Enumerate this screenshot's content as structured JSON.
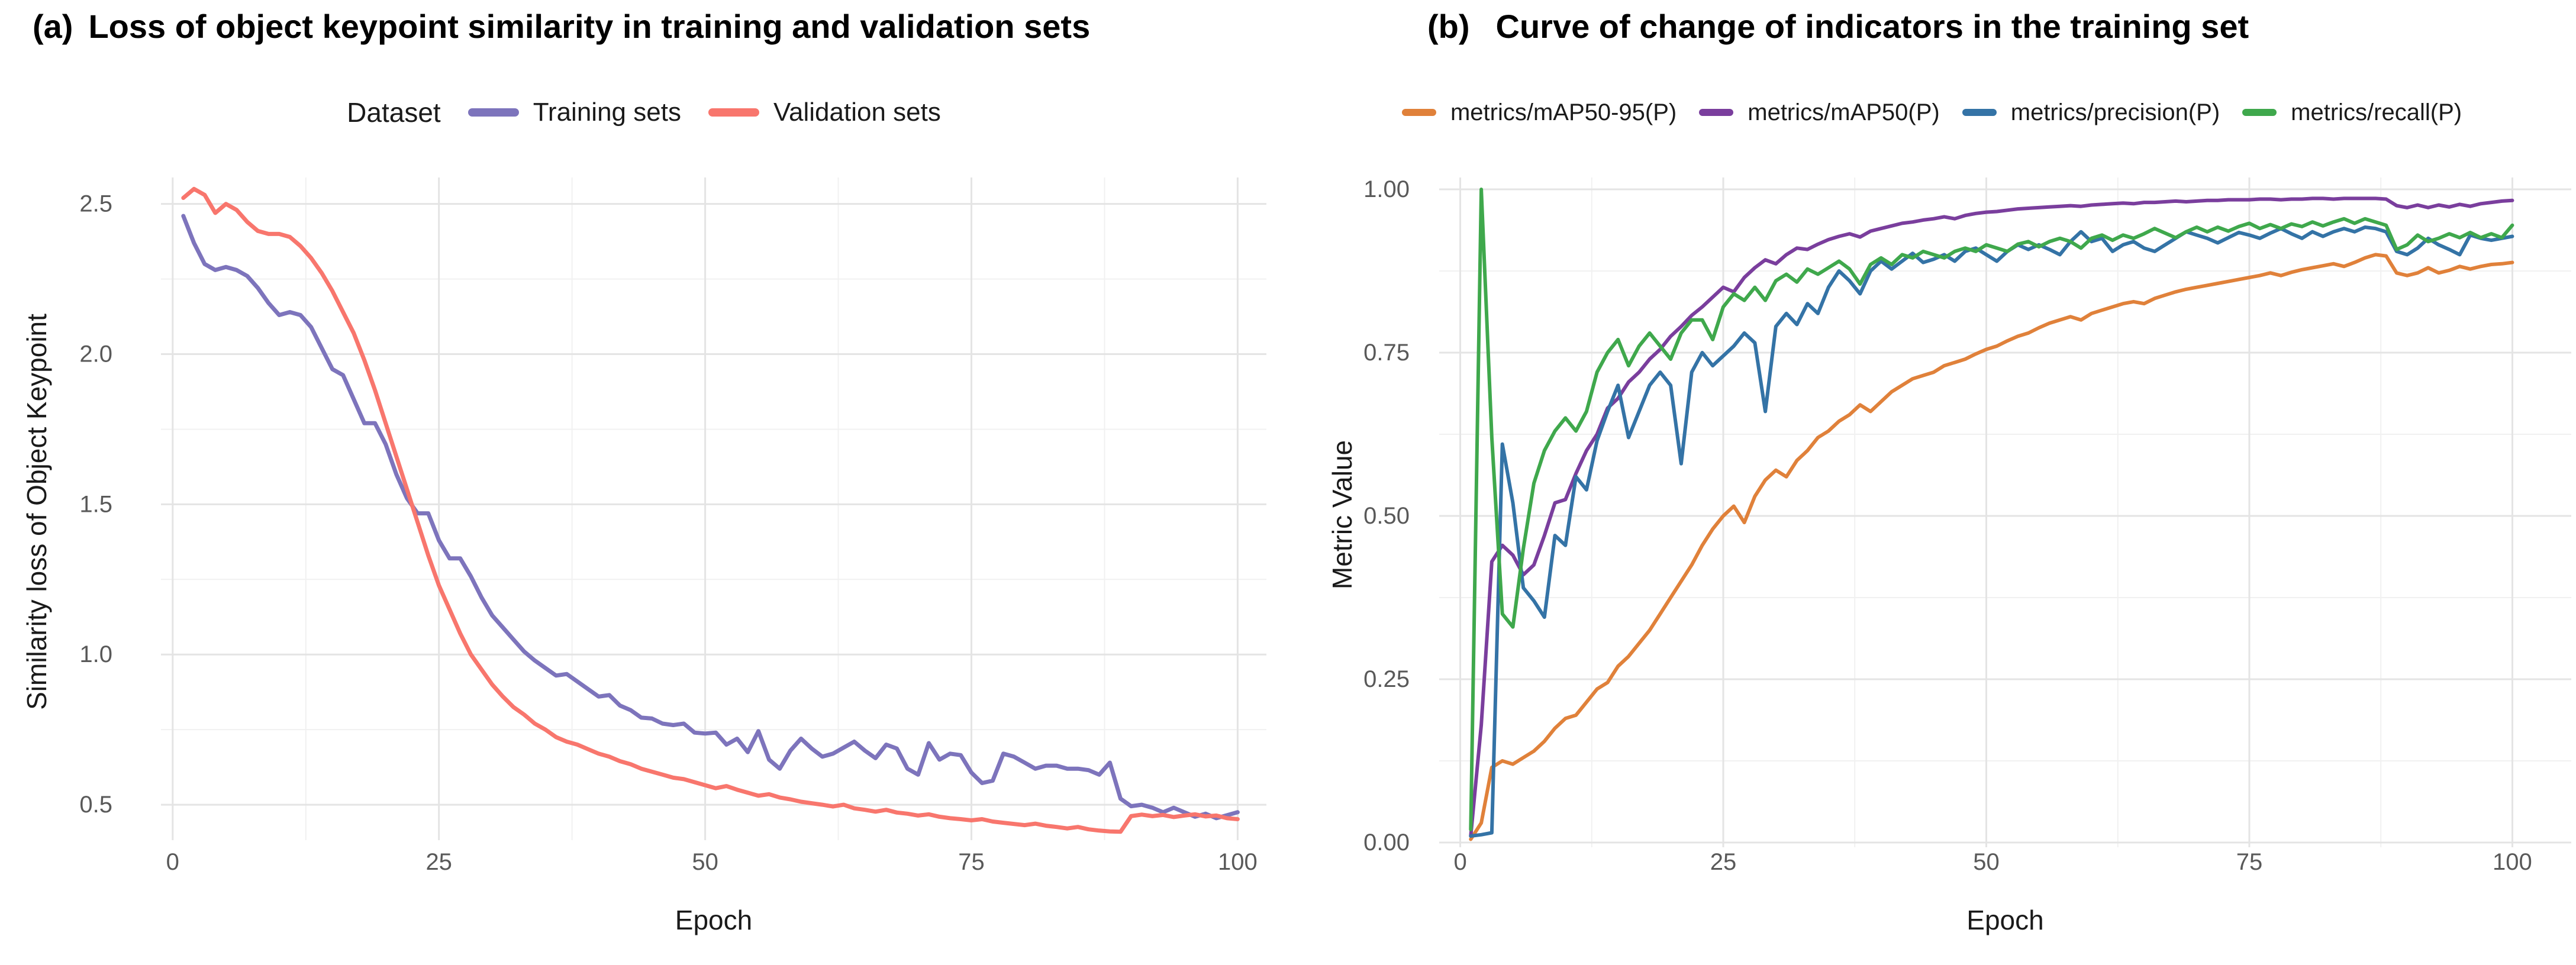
{
  "figure": {
    "background": "#ffffff"
  },
  "panels": [
    {
      "tag": "(a)",
      "title": "Loss of object keypoint similarity in training and validation sets",
      "legend_title": "Dataset",
      "xlabel": "Epoch",
      "ylabel": "Similarity loss of Object Keypoint"
    },
    {
      "tag": "(b)",
      "title": "Curve of change of indicators in the training set",
      "xlabel": "Epoch",
      "ylabel": "Metric Value"
    }
  ],
  "chart_data": [
    {
      "type": "line",
      "title": "(a) Loss of object keypoint similarity in training and validation sets",
      "xlabel": "Epoch",
      "ylabel": "Similarity loss of Object Keypoint",
      "legend_position": "top-center",
      "legend_title": "Dataset",
      "grid": true,
      "grid_major": "#E4E4E4",
      "grid_minor": "#F1F1F1",
      "tick_color": "#595959",
      "line_width": 7,
      "xlim": [
        -1.1,
        102.7
      ],
      "ylim": [
        0.382,
        2.588
      ],
      "x_ticks": {
        "values": [
          0,
          25,
          50,
          75,
          100
        ],
        "labels": [
          "0",
          "25",
          "50",
          "75",
          "100"
        ]
      },
      "x_minor": [
        12.5,
        37.5,
        62.5,
        87.5
      ],
      "y_ticks": {
        "values": [
          2.5,
          2.0,
          1.5,
          1.0,
          0.5
        ],
        "labels": [
          "2.5",
          "2.0",
          "1.5",
          "1.0",
          "0.5"
        ]
      },
      "y_minor": [
        2.25,
        1.75,
        1.25,
        0.75
      ],
      "series": [
        {
          "name": "Training sets",
          "color": "#7D74BC",
          "x_start": 1,
          "x_step": 1,
          "values": [
            2.46,
            2.37,
            2.3,
            2.28,
            2.29,
            2.28,
            2.26,
            2.22,
            2.17,
            2.13,
            2.14,
            2.13,
            2.09,
            2.02,
            1.95,
            1.93,
            1.85,
            1.77,
            1.77,
            1.7,
            1.6,
            1.52,
            1.47,
            1.47,
            1.38,
            1.32,
            1.32,
            1.26,
            1.19,
            1.13,
            1.09,
            1.05,
            1.01,
            0.98,
            0.955,
            0.93,
            0.935,
            0.91,
            0.885,
            0.86,
            0.865,
            0.83,
            0.815,
            0.79,
            0.787,
            0.77,
            0.765,
            0.77,
            0.74,
            0.737,
            0.74,
            0.7,
            0.72,
            0.675,
            0.745,
            0.65,
            0.62,
            0.68,
            0.72,
            0.687,
            0.66,
            0.67,
            0.69,
            0.71,
            0.68,
            0.655,
            0.7,
            0.687,
            0.62,
            0.6,
            0.705,
            0.65,
            0.67,
            0.665,
            0.607,
            0.572,
            0.58,
            0.67,
            0.66,
            0.64,
            0.62,
            0.63,
            0.63,
            0.62,
            0.62,
            0.615,
            0.6,
            0.64,
            0.52,
            0.495,
            0.5,
            0.49,
            0.475,
            0.49,
            0.475,
            0.46,
            0.47,
            0.455,
            0.465,
            0.475
          ]
        },
        {
          "name": "Validation sets",
          "color": "#F8766D",
          "x_start": 1,
          "x_step": 1,
          "values": [
            2.52,
            2.55,
            2.53,
            2.47,
            2.5,
            2.48,
            2.44,
            2.41,
            2.4,
            2.4,
            2.39,
            2.36,
            2.32,
            2.27,
            2.21,
            2.14,
            2.07,
            1.98,
            1.88,
            1.77,
            1.66,
            1.55,
            1.44,
            1.33,
            1.23,
            1.15,
            1.07,
            1.0,
            0.95,
            0.9,
            0.86,
            0.825,
            0.8,
            0.77,
            0.75,
            0.725,
            0.71,
            0.7,
            0.685,
            0.67,
            0.66,
            0.645,
            0.635,
            0.62,
            0.61,
            0.6,
            0.59,
            0.585,
            0.575,
            0.565,
            0.555,
            0.562,
            0.55,
            0.54,
            0.53,
            0.535,
            0.524,
            0.518,
            0.51,
            0.505,
            0.5,
            0.494,
            0.5,
            0.488,
            0.483,
            0.477,
            0.483,
            0.474,
            0.47,
            0.464,
            0.468,
            0.46,
            0.455,
            0.452,
            0.448,
            0.452,
            0.444,
            0.44,
            0.436,
            0.432,
            0.437,
            0.43,
            0.426,
            0.421,
            0.426,
            0.418,
            0.414,
            0.411,
            0.41,
            0.462,
            0.467,
            0.462,
            0.466,
            0.459,
            0.464,
            0.468,
            0.461,
            0.464,
            0.455,
            0.452
          ]
        }
      ]
    },
    {
      "type": "line",
      "title": "(b) Curve of change of indicators in the training set",
      "xlabel": "Epoch",
      "ylabel": "Metric Value",
      "legend_position": "top-center",
      "grid": true,
      "grid_major": "#E4E4E4",
      "grid_minor": "#F1F1F1",
      "tick_color": "#595959",
      "line_width": 6,
      "xlim": [
        -2.0,
        105.6
      ],
      "ylim": [
        -0.0072,
        1.0181
      ],
      "x_ticks": {
        "values": [
          0,
          25,
          50,
          75,
          100
        ],
        "labels": [
          "0",
          "25",
          "50",
          "75",
          "100"
        ]
      },
      "x_minor": [
        12.5,
        37.5,
        62.5,
        87.5
      ],
      "y_ticks": {
        "values": [
          1.0,
          0.75,
          0.5,
          0.25,
          0.0
        ],
        "labels": [
          "1.00",
          "0.75",
          "0.50",
          "0.25",
          "0.00"
        ]
      },
      "y_minor": [
        0.875,
        0.625,
        0.375,
        0.125
      ],
      "series": [
        {
          "name": "metrics/mAP50-95(P)",
          "color": "#E0813A",
          "x_start": 1,
          "x_step": 1,
          "values": [
            0.005,
            0.03,
            0.115,
            0.125,
            0.12,
            0.13,
            0.14,
            0.155,
            0.175,
            0.19,
            0.195,
            0.215,
            0.235,
            0.245,
            0.27,
            0.285,
            0.305,
            0.325,
            0.35,
            0.375,
            0.4,
            0.425,
            0.455,
            0.48,
            0.5,
            0.515,
            0.49,
            0.53,
            0.555,
            0.57,
            0.56,
            0.585,
            0.6,
            0.62,
            0.63,
            0.645,
            0.655,
            0.67,
            0.66,
            0.675,
            0.69,
            0.7,
            0.71,
            0.715,
            0.72,
            0.73,
            0.735,
            0.74,
            0.748,
            0.755,
            0.76,
            0.768,
            0.775,
            0.78,
            0.788,
            0.795,
            0.8,
            0.805,
            0.8,
            0.81,
            0.815,
            0.82,
            0.825,
            0.828,
            0.825,
            0.833,
            0.838,
            0.843,
            0.847,
            0.85,
            0.853,
            0.856,
            0.859,
            0.862,
            0.865,
            0.868,
            0.872,
            0.868,
            0.873,
            0.877,
            0.88,
            0.883,
            0.886,
            0.882,
            0.888,
            0.895,
            0.9,
            0.898,
            0.872,
            0.868,
            0.872,
            0.88,
            0.872,
            0.876,
            0.882,
            0.878,
            0.882,
            0.885,
            0.886,
            0.888
          ]
        },
        {
          "name": "metrics/mAP50(P)",
          "color": "#7A3E9D",
          "x_start": 1,
          "x_step": 1,
          "values": [
            0.01,
            0.18,
            0.43,
            0.455,
            0.44,
            0.41,
            0.425,
            0.47,
            0.52,
            0.525,
            0.565,
            0.6,
            0.625,
            0.665,
            0.68,
            0.705,
            0.72,
            0.74,
            0.755,
            0.775,
            0.79,
            0.807,
            0.82,
            0.835,
            0.85,
            0.843,
            0.865,
            0.88,
            0.892,
            0.886,
            0.9,
            0.91,
            0.908,
            0.916,
            0.923,
            0.928,
            0.932,
            0.927,
            0.936,
            0.94,
            0.944,
            0.948,
            0.95,
            0.953,
            0.955,
            0.958,
            0.955,
            0.96,
            0.963,
            0.965,
            0.966,
            0.968,
            0.97,
            0.971,
            0.972,
            0.973,
            0.974,
            0.975,
            0.974,
            0.976,
            0.977,
            0.978,
            0.979,
            0.978,
            0.98,
            0.98,
            0.981,
            0.982,
            0.981,
            0.982,
            0.983,
            0.983,
            0.984,
            0.984,
            0.984,
            0.985,
            0.985,
            0.984,
            0.985,
            0.985,
            0.986,
            0.986,
            0.985,
            0.986,
            0.986,
            0.986,
            0.986,
            0.985,
            0.975,
            0.972,
            0.976,
            0.972,
            0.976,
            0.973,
            0.977,
            0.974,
            0.978,
            0.98,
            0.982,
            0.983
          ]
        },
        {
          "name": "metrics/precision(P)",
          "color": "#3473A6",
          "x_start": 1,
          "x_step": 1,
          "values": [
            0.01,
            0.012,
            0.015,
            0.61,
            0.52,
            0.39,
            0.37,
            0.345,
            0.47,
            0.455,
            0.56,
            0.54,
            0.615,
            0.66,
            0.7,
            0.62,
            0.66,
            0.7,
            0.72,
            0.7,
            0.58,
            0.72,
            0.75,
            0.73,
            0.745,
            0.76,
            0.78,
            0.765,
            0.66,
            0.79,
            0.81,
            0.793,
            0.825,
            0.81,
            0.85,
            0.875,
            0.86,
            0.84,
            0.875,
            0.89,
            0.878,
            0.89,
            0.902,
            0.888,
            0.893,
            0.9,
            0.89,
            0.905,
            0.91,
            0.9,
            0.89,
            0.905,
            0.915,
            0.908,
            0.915,
            0.908,
            0.9,
            0.92,
            0.935,
            0.92,
            0.925,
            0.905,
            0.915,
            0.92,
            0.91,
            0.905,
            0.915,
            0.925,
            0.935,
            0.93,
            0.925,
            0.918,
            0.926,
            0.934,
            0.93,
            0.925,
            0.933,
            0.94,
            0.932,
            0.925,
            0.935,
            0.928,
            0.935,
            0.94,
            0.935,
            0.942,
            0.94,
            0.935,
            0.905,
            0.9,
            0.91,
            0.925,
            0.915,
            0.908,
            0.9,
            0.93,
            0.925,
            0.922,
            0.925,
            0.928
          ]
        },
        {
          "name": "metrics/recall(P)",
          "color": "#3FA84C",
          "x_start": 1,
          "x_step": 1,
          "values": [
            0.02,
            1.0,
            0.62,
            0.35,
            0.33,
            0.45,
            0.55,
            0.6,
            0.63,
            0.65,
            0.63,
            0.66,
            0.72,
            0.75,
            0.77,
            0.73,
            0.76,
            0.78,
            0.76,
            0.74,
            0.78,
            0.8,
            0.8,
            0.77,
            0.82,
            0.84,
            0.83,
            0.85,
            0.83,
            0.86,
            0.87,
            0.858,
            0.878,
            0.87,
            0.88,
            0.89,
            0.878,
            0.855,
            0.885,
            0.895,
            0.885,
            0.9,
            0.895,
            0.905,
            0.9,
            0.895,
            0.905,
            0.91,
            0.905,
            0.915,
            0.91,
            0.905,
            0.916,
            0.92,
            0.912,
            0.92,
            0.925,
            0.92,
            0.91,
            0.925,
            0.93,
            0.922,
            0.93,
            0.925,
            0.932,
            0.94,
            0.933,
            0.926,
            0.935,
            0.942,
            0.935,
            0.942,
            0.936,
            0.943,
            0.948,
            0.94,
            0.946,
            0.94,
            0.947,
            0.943,
            0.95,
            0.944,
            0.95,
            0.955,
            0.948,
            0.955,
            0.95,
            0.945,
            0.908,
            0.915,
            0.93,
            0.92,
            0.925,
            0.932,
            0.926,
            0.934,
            0.926,
            0.932,
            0.926,
            0.945
          ]
        }
      ]
    }
  ]
}
